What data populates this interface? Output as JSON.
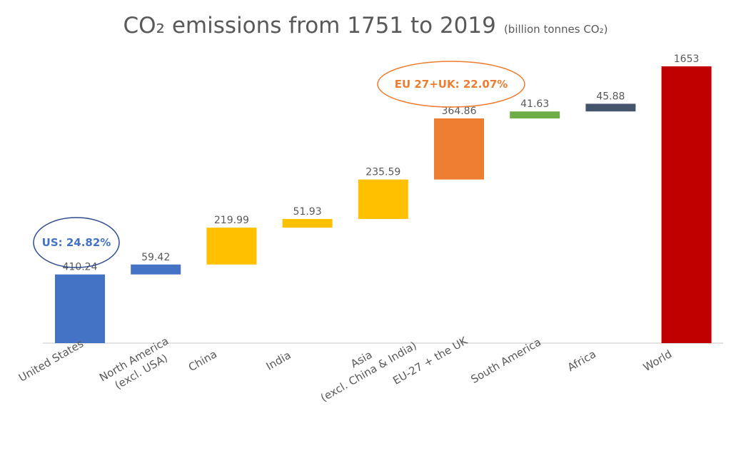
{
  "chart_data": {
    "type": "waterfall",
    "title": "CO₂ emissions from 1751 to 2019",
    "subtitle": "(billion tonnes CO₂)",
    "categories": [
      [
        "United States"
      ],
      [
        "North America",
        "(excl. USA)"
      ],
      [
        "China"
      ],
      [
        "India"
      ],
      [
        "Asia",
        "(excl. China & India)"
      ],
      [
        "EU-27 + the UK"
      ],
      [
        "South America"
      ],
      [
        "Africa"
      ],
      [
        "World"
      ]
    ],
    "values": [
      410.24,
      59.42,
      219.99,
      51.93,
      235.59,
      364.86,
      41.63,
      45.88,
      1653
    ],
    "labels": [
      "410.24",
      "59.42",
      "219.99",
      "51.93",
      "235.59",
      "364.86",
      "41.63",
      "45.88",
      "1653"
    ],
    "total_index": 8,
    "colors": [
      "#4472c4",
      "#4472c4",
      "#ffc000",
      "#ffc000",
      "#ffc000",
      "#ed7d31",
      "#70ad47",
      "#44546a",
      "#c00000"
    ],
    "ylim": [
      0,
      1653
    ],
    "grid": false,
    "annotations": [
      {
        "text": "US: 24.82%",
        "color": "#4472c4",
        "ring": "#2f4b8f"
      },
      {
        "text": "EU 27+UK: 22.07%",
        "color": "#ed7d31",
        "ring": "#ed7d31"
      }
    ]
  }
}
